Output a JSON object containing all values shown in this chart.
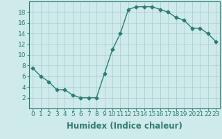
{
  "x": [
    0,
    1,
    2,
    3,
    4,
    5,
    6,
    7,
    8,
    9,
    10,
    11,
    12,
    13,
    14,
    15,
    16,
    17,
    18,
    19,
    20,
    21,
    22,
    23
  ],
  "y": [
    7.5,
    6.0,
    5.0,
    3.5,
    3.5,
    2.5,
    2.0,
    2.0,
    2.0,
    6.5,
    11.0,
    14.0,
    18.5,
    19.0,
    19.0,
    19.0,
    18.5,
    18.0,
    17.0,
    16.5,
    15.0,
    15.0,
    14.0,
    12.5
  ],
  "xlabel": "Humidex (Indice chaleur)",
  "xlim": [
    -0.5,
    23.5
  ],
  "ylim": [
    0,
    20
  ],
  "xticks": [
    0,
    1,
    2,
    3,
    4,
    5,
    6,
    7,
    8,
    9,
    10,
    11,
    12,
    13,
    14,
    15,
    16,
    17,
    18,
    19,
    20,
    21,
    22,
    23
  ],
  "yticks": [
    2,
    4,
    6,
    8,
    10,
    12,
    14,
    16,
    18
  ],
  "line_color": "#2d7d6e",
  "marker": "D",
  "marker_size": 2.5,
  "background_color": "#ceeaea",
  "grid_color": "#b0d0d0",
  "tick_fontsize": 6.5,
  "xlabel_fontsize": 8.5
}
